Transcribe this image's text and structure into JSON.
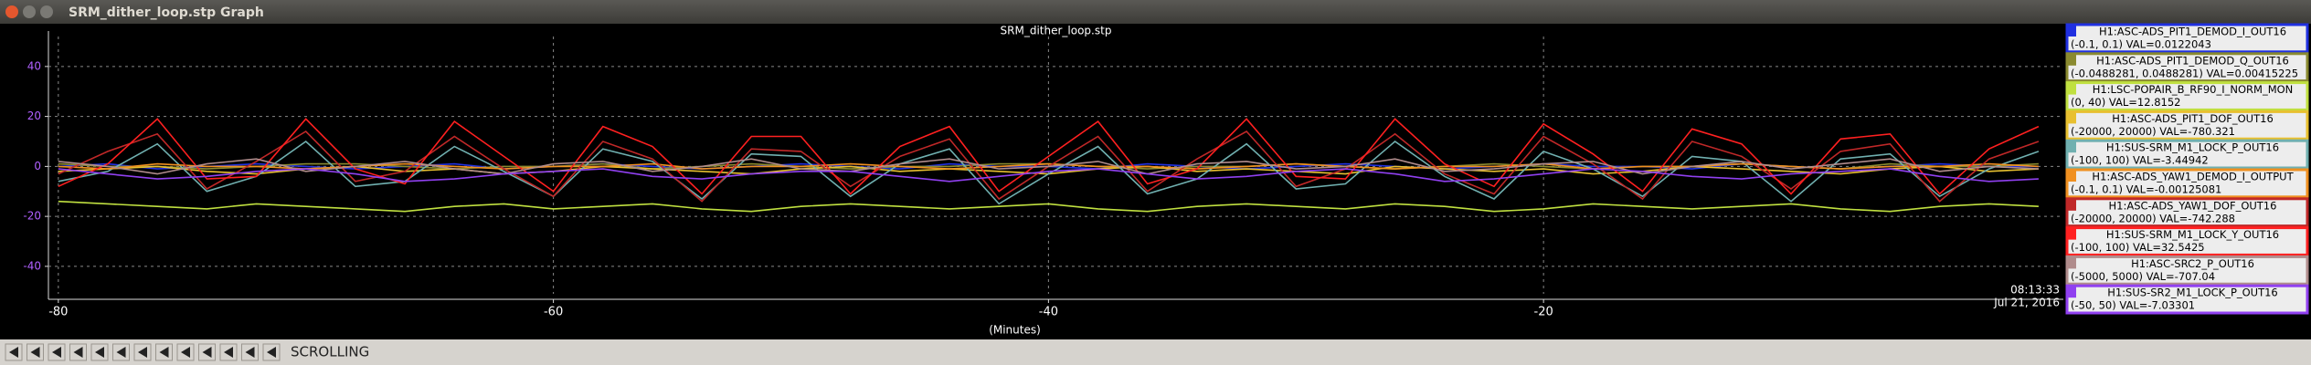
{
  "window_title": "SRM_dither_loop.stp Graph",
  "mode": "SCROLLING",
  "chart_data": {
    "type": "line",
    "title": "SRM_dither_loop.stp",
    "x_label": "(Minutes)",
    "time_label": "08:13:33",
    "date_label": "Jul 21, 2016",
    "grid": true,
    "xlim": [
      -80.4,
      1
    ],
    "ylim": [
      -51,
      52
    ],
    "xticks": [
      -80,
      -60,
      -40,
      -20
    ],
    "yticks": [
      -40,
      -20,
      0,
      20,
      40
    ],
    "x": [
      -80,
      -78,
      -76,
      -74,
      -72,
      -70,
      -68,
      -66,
      -64,
      -62,
      -60,
      -58,
      -56,
      -54,
      -52,
      -50,
      -48,
      -46,
      -44,
      -42,
      -40,
      -38,
      -36,
      -34,
      -32,
      -30,
      -28,
      -26,
      -24,
      -22,
      -20,
      -18,
      -16,
      -14,
      -12,
      -10,
      -8,
      -6,
      -4,
      -2,
      0
    ],
    "series": [
      {
        "name": "H1:ASC-ADS_PIT1_DEMOD_I_OUT16",
        "detail": "(-0.1, 0.1) VAL=0.0122043",
        "color": "#2030e0",
        "values": [
          0,
          1,
          -1,
          0,
          1,
          0,
          -1,
          0,
          1,
          -1,
          0,
          1,
          0,
          -1,
          0,
          1,
          0,
          -1,
          1,
          0,
          0,
          -1,
          1,
          0,
          -1,
          0,
          1,
          0,
          -1,
          0,
          1,
          0,
          0,
          -1,
          1,
          0,
          -1,
          0,
          1,
          0,
          0
        ]
      },
      {
        "name": "H1:ASC-ADS_PIT1_DEMOD_Q_OUT16",
        "detail": "(-0.0488281, 0.0488281) VAL=0.00415225",
        "color": "#8a8a30",
        "values": [
          1,
          0,
          0,
          -1,
          0,
          1,
          1,
          0,
          -1,
          0,
          0,
          1,
          -1,
          0,
          1,
          0,
          -1,
          0,
          0,
          1,
          1,
          0,
          -1,
          0,
          0,
          1,
          0,
          -1,
          0,
          1,
          0,
          -1,
          0,
          0,
          1,
          0,
          -1,
          1,
          0,
          0,
          1
        ]
      },
      {
        "name": "H1:LSC-POPAIR_B_RF90_I_NORM_MON",
        "detail": "(0, 40) VAL=12.8152",
        "color": "#c0e040",
        "values": [
          -14,
          -15,
          -16,
          -17,
          -15,
          -16,
          -17,
          -18,
          -16,
          -15,
          -17,
          -16,
          -15,
          -17,
          -18,
          -16,
          -15,
          -16,
          -17,
          -16,
          -15,
          -17,
          -18,
          -16,
          -15,
          -16,
          -17,
          -15,
          -16,
          -18,
          -17,
          -15,
          -16,
          -17,
          -16,
          -15,
          -17,
          -18,
          -16,
          -15,
          -16
        ]
      },
      {
        "name": "H1:ASC-ADS_PIT1_DOF_OUT16",
        "detail": "(-20000, 20000) VAL=-780.321",
        "color": "#e8c030",
        "values": [
          -2,
          -1,
          0,
          -2,
          -3,
          -1,
          0,
          -2,
          -1,
          -3,
          -2,
          0,
          -1,
          -2,
          -3,
          -1,
          0,
          -2,
          -1,
          -2,
          -3,
          -1,
          0,
          -2,
          -1,
          -2,
          -3,
          0,
          -1,
          -2,
          -1,
          -3,
          -2,
          0,
          -1,
          -2,
          -3,
          -1,
          0,
          -2,
          -1
        ]
      },
      {
        "name": "H1:SUS-SRM_M1_LOCK_P_OUT16",
        "detail": "(-100, 100) VAL=-3.44942",
        "color": "#70b0b0",
        "values": [
          -6,
          -2,
          9,
          -10,
          -4,
          10,
          -8,
          -6,
          8,
          -2,
          -12,
          7,
          2,
          -13,
          5,
          4,
          -12,
          1,
          7,
          -15,
          -3,
          8,
          -11,
          -5,
          9,
          -9,
          -7,
          10,
          -4,
          -13,
          6,
          -1,
          -12,
          4,
          2,
          -14,
          3,
          5,
          -12,
          -1,
          6
        ]
      },
      {
        "name": "H1:ASC-ADS_YAW1_DEMOD_I_OUTPUT",
        "detail": "(-0.1, 0.1) VAL=-0.00125081",
        "color": "#f09020",
        "values": [
          0,
          -1,
          1,
          0,
          0,
          -1,
          0,
          1,
          0,
          -1,
          0,
          0,
          1,
          -1,
          0,
          0,
          1,
          0,
          -1,
          0,
          1,
          0,
          0,
          -1,
          0,
          1,
          0,
          -1,
          0,
          0,
          1,
          -1,
          0,
          0,
          1,
          0,
          -1,
          0,
          0,
          1,
          0
        ]
      },
      {
        "name": "H1:ASC-ADS_YAW1_DOF_OUT16",
        "detail": "(-20000, 20000) VAL=-742.288",
        "color": "#c02828",
        "values": [
          -3,
          6,
          13,
          -9,
          2,
          14,
          -6,
          -2,
          12,
          -1,
          -12,
          10,
          3,
          -14,
          7,
          6,
          -8,
          4,
          11,
          -13,
          0,
          12,
          -10,
          3,
          14,
          -8,
          -1,
          13,
          -3,
          -11,
          12,
          1,
          -13,
          10,
          4,
          -9,
          6,
          9,
          -14,
          3,
          10
        ]
      },
      {
        "name": "H1:SUS-SRM_M1_LOCK_Y_OUT16",
        "detail": "(-100, 100) VAL=32.5425",
        "color": "#ff2020",
        "values": [
          -8,
          1,
          19,
          -5,
          -4,
          19,
          -1,
          -7,
          18,
          4,
          -10,
          16,
          8,
          -11,
          12,
          12,
          -11,
          8,
          16,
          -10,
          4,
          18,
          -7,
          -1,
          19,
          -4,
          -5,
          19,
          1,
          -8,
          17,
          5,
          -10,
          15,
          9,
          -11,
          11,
          13,
          -11,
          7,
          16
        ]
      },
      {
        "name": "H1:ASC-SRC2_P_OUT16",
        "detail": "(-5000, 5000) VAL=-707.04",
        "color": "#b08c8c",
        "values": [
          2,
          0,
          -3,
          1,
          3,
          -2,
          0,
          2,
          -1,
          -3,
          1,
          2,
          -2,
          0,
          3,
          -1,
          -2,
          1,
          3,
          -1,
          0,
          2,
          -3,
          1,
          2,
          -1,
          0,
          3,
          -2,
          -1,
          1,
          2,
          -3,
          0,
          2,
          -1,
          1,
          3,
          -2,
          0,
          -1
        ]
      },
      {
        "name": "H1:SUS-SR2_M1_LOCK_P_OUT16",
        "detail": "(-50, 50) VAL=-7.03301",
        "color": "#9040f0",
        "values": [
          -1,
          -3,
          -5,
          -4,
          -2,
          -1,
          -3,
          -6,
          -5,
          -3,
          -2,
          -1,
          -4,
          -5,
          -3,
          -2,
          -2,
          -4,
          -6,
          -4,
          -2,
          -1,
          -3,
          -5,
          -4,
          -2,
          -1,
          -3,
          -6,
          -5,
          -3,
          -1,
          -2,
          -4,
          -5,
          -3,
          -2,
          -1,
          -4,
          -6,
          -5
        ]
      }
    ]
  }
}
